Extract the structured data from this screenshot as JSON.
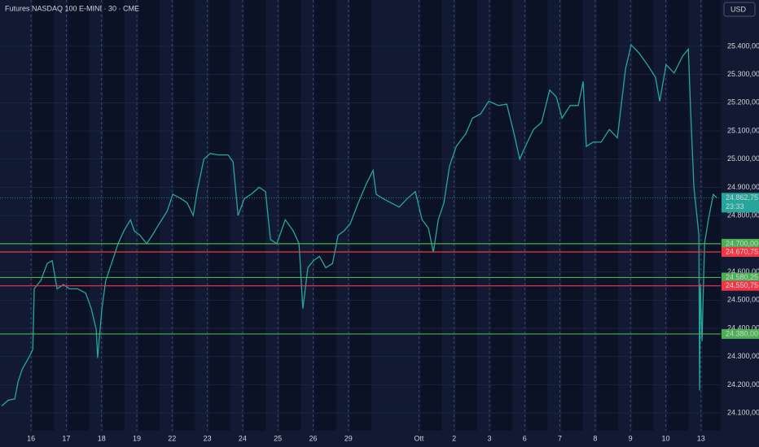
{
  "chart_data": {
    "type": "line",
    "title": "Futures NASDAQ 100 E-MINI · 30 · CME",
    "currency": "USD",
    "color": "#26a69a",
    "x": [
      -0.83,
      -0.65,
      -0.46,
      -0.37,
      -0.25,
      -0.07,
      0.05,
      0.09,
      0.28,
      0.46,
      0.6,
      0.74,
      0.92,
      1.09,
      1.32,
      1.55,
      1.71,
      1.85,
      1.89,
      2.01,
      2.12,
      2.31,
      2.47,
      2.63,
      2.82,
      2.93,
      3.09,
      3.28,
      3.44,
      3.63,
      3.86,
      4.02,
      4.25,
      4.43,
      4.6,
      4.71,
      4.9,
      5.08,
      5.31,
      5.59,
      5.73,
      5.87,
      6.05,
      6.24,
      6.47,
      6.65,
      6.79,
      6.97,
      7.21,
      7.44,
      7.6,
      7.71,
      7.85,
      8.01,
      8.18,
      8.36,
      8.55,
      8.71,
      8.87,
      9.05,
      9.28,
      9.52,
      9.7,
      9.79,
      9.98,
      10.21,
      10.44,
      10.67,
      10.9,
      11.09,
      11.27,
      11.41,
      11.55,
      11.71,
      11.87,
      12.06,
      12.33,
      12.52,
      12.75,
      12.98,
      13.26,
      13.49,
      13.67,
      13.86,
      14.02,
      14.25,
      14.48,
      14.71,
      14.9,
      15.06,
      15.29,
      15.52,
      15.66,
      15.75,
      15.94,
      16.17,
      16.4,
      16.63,
      16.86,
      17.02,
      17.25,
      17.48,
      17.71,
      17.83,
      18.01,
      18.24,
      18.48,
      18.64,
      18.71,
      18.8,
      18.94,
      18.96,
      18.98,
      19.03,
      19.1,
      19.21,
      19.35,
      19.45
    ],
    "values": [
      24125,
      24145,
      24150,
      24210,
      24255,
      24295,
      24325,
      24540,
      24570,
      24630,
      24640,
      24540,
      24555,
      24540,
      24540,
      24525,
      24470,
      24395,
      24295,
      24470,
      24570,
      24640,
      24700,
      24745,
      24785,
      24745,
      24730,
      24700,
      24730,
      24770,
      24815,
      24875,
      24860,
      24845,
      24800,
      24885,
      25000,
      25020,
      25015,
      25015,
      24990,
      24800,
      24860,
      24875,
      24900,
      24885,
      24715,
      24700,
      24785,
      24745,
      24700,
      24470,
      24615,
      24640,
      24655,
      24615,
      24630,
      24730,
      24745,
      24770,
      24845,
      24915,
      24960,
      24875,
      24860,
      24845,
      24830,
      24860,
      24885,
      24785,
      24755,
      24670,
      24785,
      24845,
      24975,
      25045,
      25090,
      25145,
      25160,
      25205,
      25190,
      25195,
      25105,
      25000,
      25045,
      25105,
      25130,
      25245,
      25220,
      25145,
      25190,
      25190,
      25275,
      25045,
      25060,
      25060,
      25105,
      25075,
      25320,
      25405,
      25375,
      25335,
      25290,
      25205,
      25335,
      25305,
      25365,
      25390,
      25160,
      24900,
      24730,
      24180,
      24555,
      24355,
      24700,
      24785,
      24875,
      24862.75
    ],
    "xlim": [
      -0.88,
      19.56
    ],
    "ylim": [
      24037,
      25564
    ],
    "xticks": [
      {
        "value": 0,
        "label": "16"
      },
      {
        "value": 1,
        "label": "17"
      },
      {
        "value": 2,
        "label": "18"
      },
      {
        "value": 3,
        "label": "19"
      },
      {
        "value": 4,
        "label": "22"
      },
      {
        "value": 5,
        "label": "23"
      },
      {
        "value": 6,
        "label": "24"
      },
      {
        "value": 7,
        "label": "25"
      },
      {
        "value": 8,
        "label": "26"
      },
      {
        "value": 9,
        "label": "29"
      },
      {
        "value": 11,
        "label": "Ott"
      },
      {
        "value": 12,
        "label": "2"
      },
      {
        "value": 13,
        "label": "3"
      },
      {
        "value": 14,
        "label": "6"
      },
      {
        "value": 15,
        "label": "7"
      },
      {
        "value": 16,
        "label": "8"
      },
      {
        "value": 17,
        "label": "9"
      },
      {
        "value": 18,
        "label": "10"
      },
      {
        "value": 19,
        "label": "13"
      }
    ],
    "yticks": [
      {
        "value": 24100,
        "label": "24.100,00"
      },
      {
        "value": 24200,
        "label": "24.200,00"
      },
      {
        "value": 24300,
        "label": "24.300,00"
      },
      {
        "value": 24400,
        "label": "24.400,00"
      },
      {
        "value": 24500,
        "label": "24.500,00"
      },
      {
        "value": 24600,
        "label": "24.600,00"
      },
      {
        "value": 24800,
        "label": "24.800,00"
      },
      {
        "value": 24900,
        "label": "24.900,00"
      },
      {
        "value": 25000,
        "label": "25.000,00"
      },
      {
        "value": 25100,
        "label": "25.100,00"
      },
      {
        "value": 25200,
        "label": "25.200,00"
      },
      {
        "value": 25300,
        "label": "25.300,00"
      },
      {
        "value": 25400,
        "label": "25.400,00"
      }
    ],
    "levels": [
      {
        "value": 24700,
        "label": "24.700,00",
        "color": "#4caf50"
      },
      {
        "value": 24670.75,
        "label": "24.670,75",
        "color": "#f23645"
      },
      {
        "value": 24580.25,
        "label": "24.580,25",
        "color": "#4caf50"
      },
      {
        "value": 24550.75,
        "label": "24.550,75",
        "color": "#f23645"
      },
      {
        "value": 24380,
        "label": "24.380,00",
        "color": "#4caf50"
      }
    ],
    "last_price": {
      "value": 24862.75,
      "label": "24.862,75",
      "countdown": "23:33"
    }
  }
}
